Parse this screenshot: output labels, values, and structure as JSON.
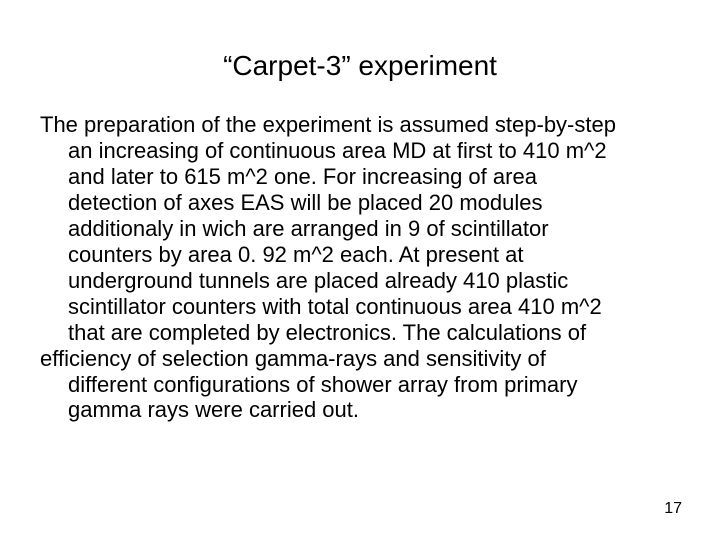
{
  "slide": {
    "title": "“Carpet-3”  experiment",
    "body_lines": [
      "The preparation of the experiment is assumed step-by-step",
      "an increasing of continuous area MD at first to 410 m^2",
      "and later to 615 m^2 one. For increasing of area",
      "detection of axes EAS will be placed 20 modules",
      "additionaly in wich are arranged in 9 of scintillator",
      "counters by area 0. 92 m^2 each. At present at",
      "underground tunnels are placed already 410 plastic",
      "scintillator counters with total continuous area 410 m^2",
      "that are completed by electronics. The calculations of",
      "efficiency of selection gamma-rays and sensitivity of",
      "different configurations of shower array from primary",
      "gamma rays were carried out."
    ],
    "page_number": "17"
  },
  "style": {
    "background_color": "#ffffff",
    "text_color": "#000000",
    "title_fontsize": 28,
    "body_fontsize": 22,
    "pagenum_fontsize": 16,
    "font_family": "Arial"
  }
}
